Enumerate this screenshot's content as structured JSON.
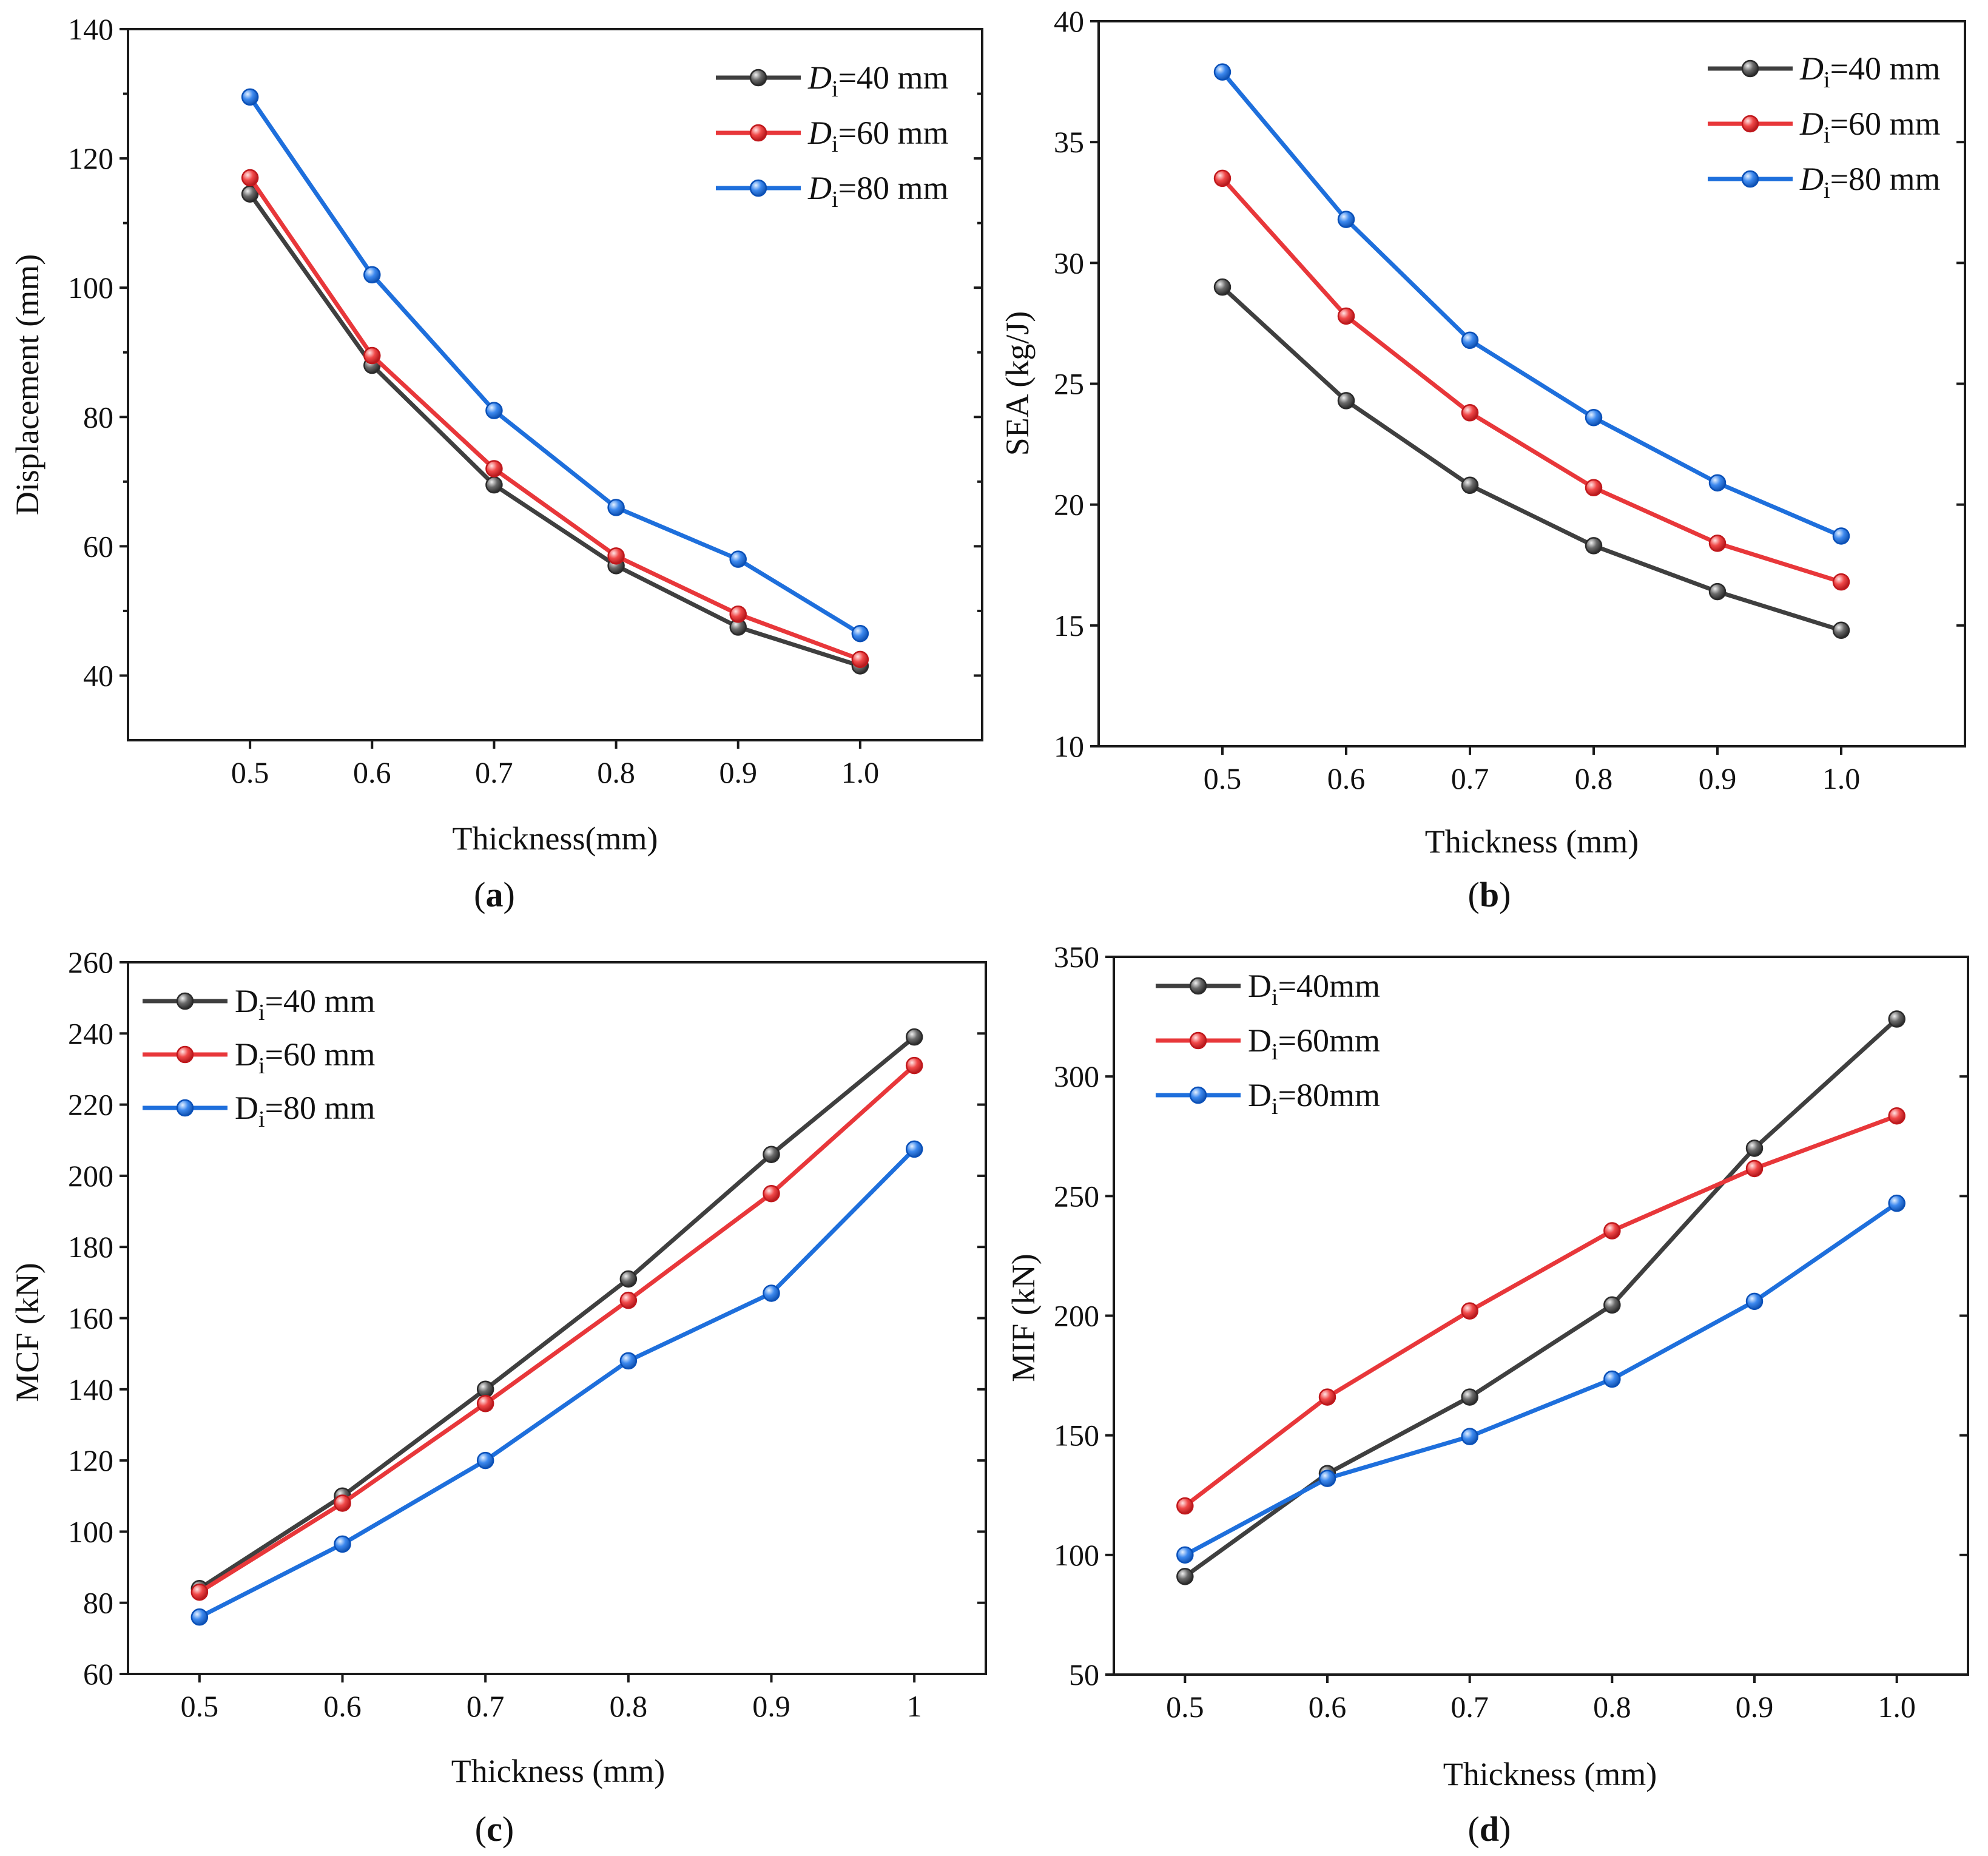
{
  "colors": {
    "d40": "#3f3f3f",
    "d60": "#e8373a",
    "d80": "#1e6fdc",
    "marker_d40": "#2b2b2b",
    "marker_d60": "#c0181c",
    "marker_d80": "#0a50b8",
    "axis": "#1a1a1a",
    "background": "#ffffff"
  },
  "icons": {
    "legend_marker": "line-with-sphere-marker-icon"
  },
  "chart_data": [
    {
      "type": "line",
      "panel_label": "a",
      "title": "",
      "xlabel": "Thickness(mm)",
      "ylabel": "Displacement (mm)",
      "x": [
        0.5,
        0.6,
        0.7,
        0.8,
        0.9,
        1.0
      ],
      "xtick_labels": [
        "0.5",
        "0.6",
        "0.7",
        "0.8",
        "0.9",
        "1.0"
      ],
      "xlim": [
        0.4,
        1.1
      ],
      "ylim": [
        30,
        140
      ],
      "ytick_values": [
        40,
        60,
        80,
        100,
        120,
        140
      ],
      "ytick_labels": [
        "40",
        "60",
        "80",
        "100",
        "120",
        "140"
      ],
      "legend_position": "top-right",
      "legend_italic_symbol": true,
      "series": [
        {
          "name": "Di=40 mm",
          "symbol": "D",
          "subscript": "i",
          "suffix": "=40 mm",
          "color_key": "d40",
          "values": [
            114.5,
            88,
            69.5,
            57,
            47.5,
            41.5
          ]
        },
        {
          "name": "Di=60 mm",
          "symbol": "D",
          "subscript": "i",
          "suffix": "=60 mm",
          "color_key": "d60",
          "values": [
            117,
            89.5,
            72,
            58.5,
            49.5,
            42.5
          ]
        },
        {
          "name": "Di=80 mm",
          "symbol": "D",
          "subscript": "i",
          "suffix": "=80 mm",
          "color_key": "d80",
          "values": [
            129.5,
            102,
            81,
            66,
            58,
            46.5
          ]
        }
      ]
    },
    {
      "type": "line",
      "panel_label": "b",
      "title": "",
      "xlabel": "Thickness (mm)",
      "ylabel": "SEA (kg/J)",
      "x": [
        0.5,
        0.6,
        0.7,
        0.8,
        0.9,
        1.0
      ],
      "xtick_labels": [
        "0.5",
        "0.6",
        "0.7",
        "0.8",
        "0.9",
        "1.0"
      ],
      "xlim": [
        0.4,
        1.1
      ],
      "ylim": [
        10,
        40
      ],
      "ytick_values": [
        10,
        15,
        20,
        25,
        30,
        35,
        40
      ],
      "ytick_labels": [
        "10",
        "15",
        "20",
        "25",
        "30",
        "35",
        "40"
      ],
      "legend_position": "top-right",
      "legend_italic_symbol": true,
      "series": [
        {
          "name": "Di=40 mm",
          "symbol": "D",
          "subscript": "i",
          "suffix": "=40 mm",
          "color_key": "d40",
          "values": [
            29,
            24.3,
            20.8,
            18.3,
            16.4,
            14.8
          ]
        },
        {
          "name": "Di=60 mm",
          "symbol": "D",
          "subscript": "i",
          "suffix": "=60 mm",
          "color_key": "d60",
          "values": [
            33.5,
            27.8,
            23.8,
            20.7,
            18.4,
            16.8
          ]
        },
        {
          "name": "Di=80 mm",
          "symbol": "D",
          "subscript": "i",
          "suffix": "=80 mm",
          "color_key": "d80",
          "values": [
            37.9,
            31.8,
            26.8,
            23.6,
            20.9,
            18.7
          ]
        }
      ]
    },
    {
      "type": "line",
      "panel_label": "c",
      "title": "",
      "xlabel": "Thickness (mm)",
      "ylabel": "MCF (kN)",
      "x": [
        0.5,
        0.6,
        0.7,
        0.8,
        0.9,
        1.0
      ],
      "xtick_labels": [
        "0.5",
        "0.6",
        "0.7",
        "0.8",
        "0.9",
        "1"
      ],
      "xlim": [
        0.45,
        1.05
      ],
      "ylim": [
        60,
        260
      ],
      "ytick_values": [
        60,
        80,
        100,
        120,
        140,
        160,
        180,
        200,
        220,
        240,
        260
      ],
      "ytick_labels": [
        "60",
        "80",
        "100",
        "120",
        "140",
        "160",
        "180",
        "200",
        "220",
        "240",
        "260"
      ],
      "legend_position": "top-left",
      "legend_italic_symbol": false,
      "series": [
        {
          "name": "Di=40 mm",
          "symbol": "D",
          "subscript": "i",
          "suffix": "=40 mm",
          "color_key": "d40",
          "values": [
            84,
            110,
            140,
            171,
            206,
            239
          ]
        },
        {
          "name": "Di=60 mm",
          "symbol": "D",
          "subscript": "i",
          "suffix": "=60 mm",
          "color_key": "d60",
          "values": [
            83,
            108,
            136,
            165,
            195,
            231
          ]
        },
        {
          "name": "Di=80 mm",
          "symbol": "D",
          "subscript": "i",
          "suffix": "=80 mm",
          "color_key": "d80",
          "values": [
            76,
            96.5,
            120,
            148,
            167,
            207.5
          ]
        }
      ]
    },
    {
      "type": "line",
      "panel_label": "d",
      "title": "",
      "xlabel": "Thickness (mm)",
      "ylabel": "MIF (kN)",
      "x": [
        0.5,
        0.6,
        0.7,
        0.8,
        0.9,
        1.0
      ],
      "xtick_labels": [
        "0.5",
        "0.6",
        "0.7",
        "0.8",
        "0.9",
        "1.0"
      ],
      "xlim": [
        0.45,
        1.05
      ],
      "ylim": [
        50,
        350
      ],
      "ytick_values": [
        50,
        100,
        150,
        200,
        250,
        300,
        350
      ],
      "ytick_labels": [
        "50",
        "100",
        "150",
        "200",
        "250",
        "300",
        "350"
      ],
      "legend_position": "top-left",
      "legend_italic_symbol": false,
      "series": [
        {
          "name": "Di=40mm",
          "symbol": "D",
          "subscript": "i",
          "suffix": "=40mm",
          "color_key": "d40",
          "values": [
            91,
            134,
            166,
            204.5,
            270,
            324
          ]
        },
        {
          "name": "Di=60mm",
          "symbol": "D",
          "subscript": "i",
          "suffix": "=60mm",
          "color_key": "d60",
          "values": [
            120.5,
            166,
            202,
            235.5,
            261.5,
            283.5
          ]
        },
        {
          "name": "Di=80mm",
          "symbol": "D",
          "subscript": "i",
          "suffix": "=80mm",
          "color_key": "d80",
          "values": [
            100,
            132,
            149.5,
            173.5,
            206,
            247
          ]
        }
      ]
    }
  ]
}
